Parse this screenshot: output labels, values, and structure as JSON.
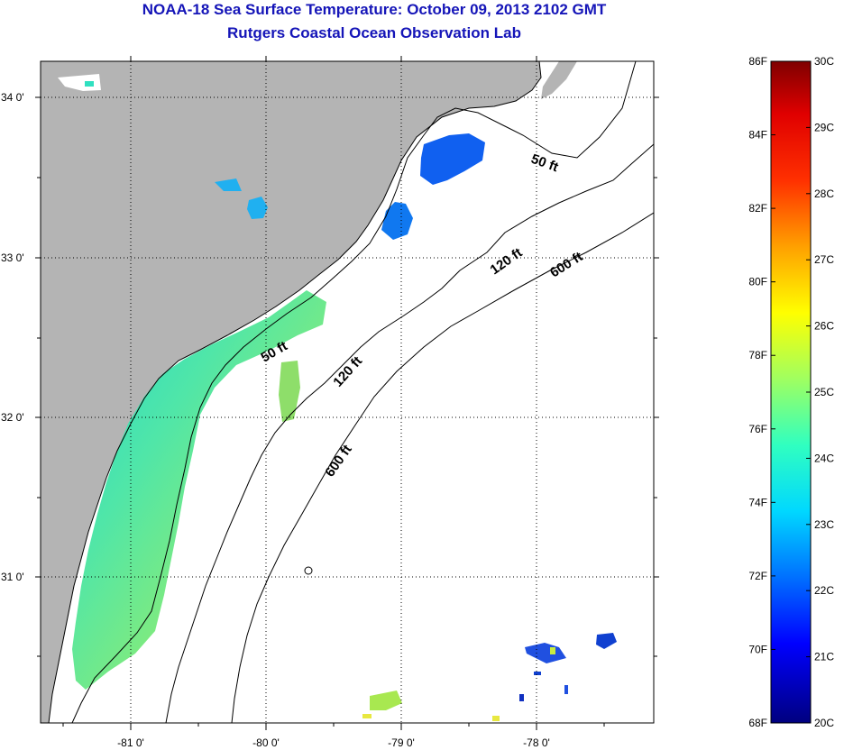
{
  "title": {
    "line1": "NOAA-18 Sea Surface Temperature:  October 09, 2013 2102 GMT",
    "line2": "Rutgers Coastal Ocean Observation Lab"
  },
  "map": {
    "lat_labels": [
      "34 0'",
      "33 0'",
      "32 0'",
      "31 0'"
    ],
    "lon_labels": [
      "-81 0'",
      "-80 0'",
      "-79 0'",
      "-78 0'"
    ],
    "depth_labels": {
      "d50_north": "50 ft",
      "d50_south": "50 ft",
      "d120_north": "120 ft",
      "d120_south": "120 ft",
      "d600_north": "600 ft",
      "d600_south": "600 ft"
    }
  },
  "colorbar": {
    "fahrenheit": [
      "86F",
      "84F",
      "82F",
      "80F",
      "78F",
      "76F",
      "74F",
      "72F",
      "70F",
      "68F"
    ],
    "celsius": [
      "30C",
      "29C",
      "28C",
      "27C",
      "26C",
      "25C",
      "24C",
      "23C",
      "22C",
      "21C",
      "20C"
    ]
  },
  "colors": {
    "title": "#1515b8",
    "land": "#b4b4b4",
    "coastline": "#000000"
  }
}
